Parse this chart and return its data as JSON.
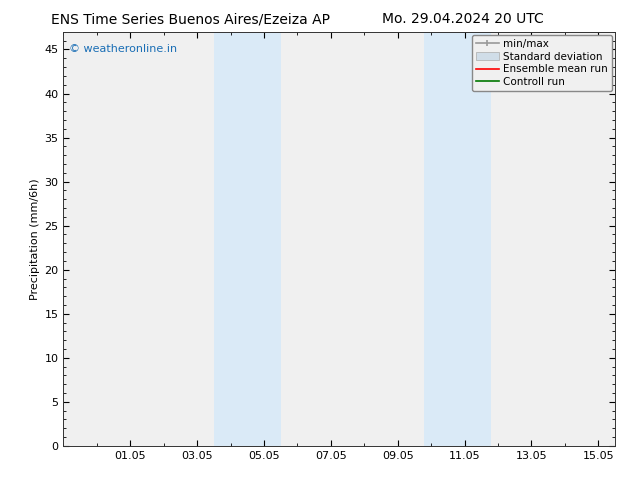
{
  "title_left": "ENS Time Series Buenos Aires/Ezeiza AP",
  "title_right": "Mo. 29.04.2024 20 UTC",
  "ylabel": "Precipitation (mm/6h)",
  "background_color": "#ffffff",
  "plot_bg_color": "#f0f0f0",
  "ylim": [
    0,
    47
  ],
  "yticks": [
    0,
    5,
    10,
    15,
    20,
    25,
    30,
    35,
    40,
    45
  ],
  "xlim": [
    0,
    16.5
  ],
  "xtick_labels": [
    "01.05",
    "03.05",
    "05.05",
    "07.05",
    "09.05",
    "11.05",
    "13.05",
    "15.05"
  ],
  "xtick_positions": [
    2,
    4,
    6,
    8,
    10,
    12,
    14,
    16
  ],
  "shaded_bands": [
    {
      "x_start": 4.5,
      "x_end": 5.5
    },
    {
      "x_start": 5.5,
      "x_end": 6.5
    },
    {
      "x_start": 10.8,
      "x_end": 11.8
    },
    {
      "x_start": 11.8,
      "x_end": 12.8
    }
  ],
  "shade_color": "#daeaf7",
  "watermark_text": "© weatheronline.in",
  "watermark_color": "#1a6eb5",
  "legend_labels": [
    "min/max",
    "Standard deviation",
    "Ensemble mean run",
    "Controll run"
  ],
  "legend_colors_line": [
    "#999999",
    "#bbccdd",
    "#ff0000",
    "#007700"
  ],
  "title_fontsize": 10,
  "axis_label_fontsize": 8,
  "tick_fontsize": 8,
  "legend_fontsize": 7.5
}
